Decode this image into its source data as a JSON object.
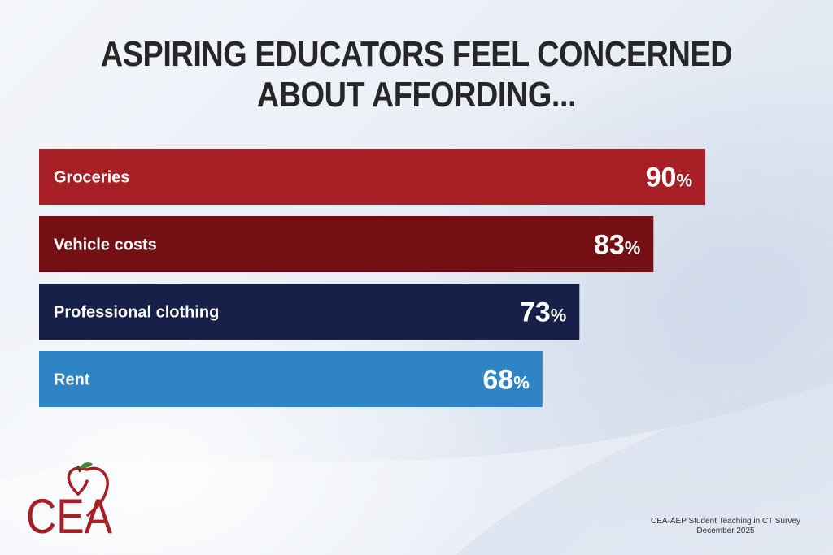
{
  "title_lines": [
    "ASPIRING EDUCATORS FEEL CONCERNED",
    "ABOUT AFFORDING..."
  ],
  "chart_data": {
    "type": "bar",
    "orientation": "horizontal",
    "categories": [
      "Groceries",
      "Vehicle costs",
      "Professional clothing",
      "Rent"
    ],
    "values": [
      90,
      83,
      73,
      68
    ],
    "value_suffix": "%",
    "colors": [
      "#a81e25",
      "#741014",
      "#162049",
      "#2f84c5"
    ],
    "xlim": [
      0,
      100
    ],
    "grid": false,
    "legend": "none"
  },
  "logo": {
    "text": "CEA",
    "icon": "apple-icon",
    "color": "#a81e25",
    "leaf_color": "#3a8a2e"
  },
  "source": {
    "line1": "CEA-AEP Student Teaching in CT Survey",
    "line2": "December 2025"
  }
}
